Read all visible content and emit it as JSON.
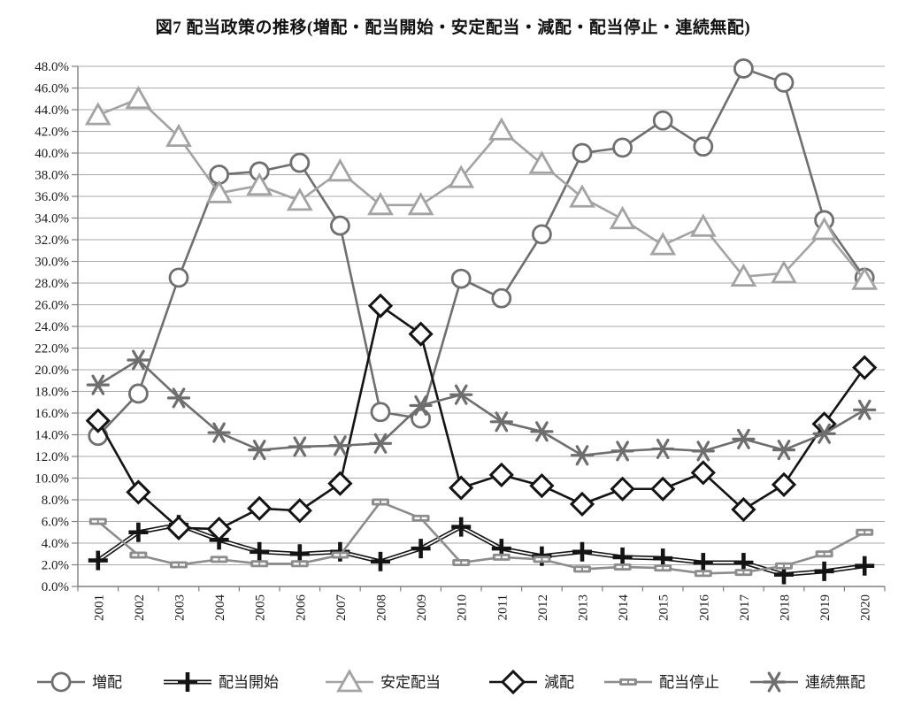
{
  "title": "図7 配当政策の推移(増配・配当開始・安定配当・減配・配当停止・連続無配)",
  "chart_data": {
    "type": "line",
    "x": [
      "2001",
      "2002",
      "2003",
      "2004",
      "2005",
      "2006",
      "2007",
      "2008",
      "2009",
      "2010",
      "2011",
      "2012",
      "2013",
      "2014",
      "2015",
      "2016",
      "2017",
      "2018",
      "2019",
      "2020"
    ],
    "ylim": [
      0,
      48
    ],
    "ytick_step": 2,
    "ytick_labels": [
      "0.0%",
      "2.0%",
      "4.0%",
      "6.0%",
      "8.0%",
      "10.0%",
      "12.0%",
      "14.0%",
      "16.0%",
      "18.0%",
      "20.0%",
      "22.0%",
      "24.0%",
      "26.0%",
      "28.0%",
      "30.0%",
      "32.0%",
      "34.0%",
      "36.0%",
      "38.0%",
      "40.0%",
      "42.0%",
      "44.0%",
      "46.0%",
      "48.0%"
    ],
    "grid": true,
    "legend_position": "bottom",
    "series": [
      {
        "id": "increase",
        "name": "増配",
        "marker": "circle",
        "color": "#6f6f6f",
        "values": [
          13.9,
          17.8,
          28.5,
          38.0,
          38.3,
          39.1,
          33.3,
          16.1,
          15.5,
          28.4,
          26.6,
          32.5,
          40.0,
          40.5,
          43.0,
          40.6,
          47.8,
          46.5,
          33.8,
          28.5
        ]
      },
      {
        "id": "initiation",
        "name": "配当開始",
        "marker": "plus",
        "color": "#141414",
        "values": [
          2.4,
          5.0,
          5.7,
          4.3,
          3.2,
          3.0,
          3.2,
          2.3,
          3.5,
          5.5,
          3.5,
          2.8,
          3.2,
          2.7,
          2.6,
          2.2,
          2.2,
          1.1,
          1.4,
          1.9
        ]
      },
      {
        "id": "stable",
        "name": "安定配当",
        "marker": "triangle",
        "color": "#a3a3a3",
        "values": [
          43.5,
          45.0,
          41.5,
          36.3,
          37.0,
          35.6,
          38.3,
          35.2,
          35.2,
          37.7,
          42.1,
          39.0,
          35.9,
          33.9,
          31.5,
          33.2,
          28.6,
          28.9,
          32.9,
          28.3
        ]
      },
      {
        "id": "decrease",
        "name": "減配",
        "marker": "diamond",
        "color": "#141414",
        "values": [
          15.3,
          8.7,
          5.4,
          5.3,
          7.2,
          7.0,
          9.5,
          25.9,
          23.3,
          9.1,
          10.3,
          9.3,
          7.6,
          9.0,
          9.0,
          10.5,
          7.1,
          9.4,
          15.0,
          20.2
        ]
      },
      {
        "id": "suspension",
        "name": "配当停止",
        "marker": "dash",
        "color": "#8c8c8c",
        "values": [
          6.0,
          2.9,
          2.0,
          2.5,
          2.1,
          2.1,
          2.9,
          7.8,
          6.3,
          2.2,
          2.7,
          2.5,
          1.6,
          1.8,
          1.7,
          1.2,
          1.3,
          1.9,
          3.0,
          5.0
        ]
      },
      {
        "id": "no-dividend",
        "name": "連続無配",
        "marker": "asterisk",
        "color": "#6e6e6e",
        "values": [
          18.6,
          20.9,
          17.4,
          14.2,
          12.6,
          12.9,
          13.0,
          13.2,
          16.7,
          17.7,
          15.2,
          14.3,
          12.1,
          12.5,
          12.7,
          12.5,
          13.6,
          12.6,
          14.1,
          16.3
        ]
      }
    ]
  }
}
